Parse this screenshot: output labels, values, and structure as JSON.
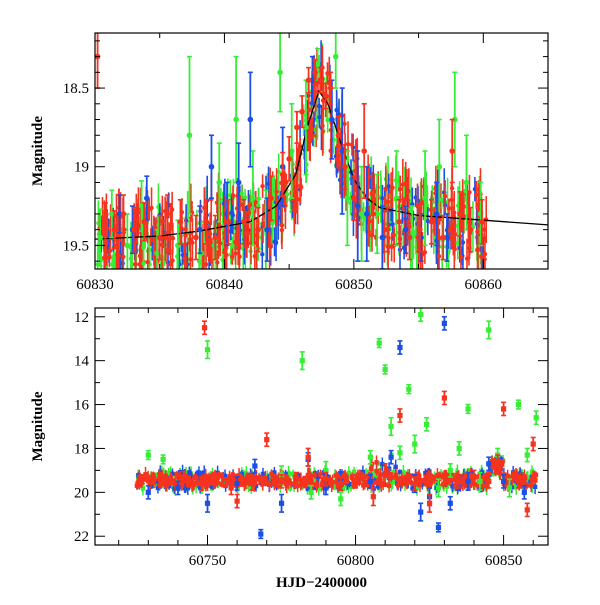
{
  "colors": {
    "green": "#36ee36",
    "blue": "#1b4fe6",
    "red": "#f5331f",
    "model": "#000000"
  },
  "chart_data": [
    {
      "type": "scatter",
      "panel": "zoom",
      "ylabel": "Magnitude",
      "xlabel": "",
      "xlim": [
        60830,
        60865
      ],
      "ylim": [
        19.65,
        18.15
      ],
      "y_inverted": true,
      "xticks": [
        60830,
        60840,
        60850,
        60860
      ],
      "yticks": [
        18.5,
        19,
        19.5
      ],
      "yticklabels": [
        "18.5",
        "19",
        "19.5"
      ],
      "model_curve": [
        [
          60830,
          19.46
        ],
        [
          60835,
          19.44
        ],
        [
          60838,
          19.41
        ],
        [
          60842,
          19.35
        ],
        [
          60844,
          19.25
        ],
        [
          60845.5,
          19.05
        ],
        [
          60846.5,
          18.72
        ],
        [
          60847.3,
          18.52
        ],
        [
          60848,
          18.6
        ],
        [
          60849,
          18.85
        ],
        [
          60850,
          19.08
        ],
        [
          60851,
          19.2
        ],
        [
          60852,
          19.26
        ],
        [
          60855,
          19.31
        ],
        [
          60860,
          19.34
        ],
        [
          60865,
          19.37
        ]
      ],
      "series": [
        {
          "color": "green",
          "points": [
            [
              60830.4,
              19.45,
              0.18
            ],
            [
              60831.3,
              19.3,
              0.15
            ],
            [
              60832.5,
              19.5,
              0.2
            ],
            [
              60833.6,
              19.25,
              0.16
            ],
            [
              60834.8,
              19.55,
              0.15
            ],
            [
              60836.4,
              19.5,
              0.16
            ],
            [
              60837.3,
              18.8,
              0.5
            ],
            [
              60838.2,
              19.55,
              0.2
            ],
            [
              60839.6,
              19.1,
              0.25
            ],
            [
              60840.9,
              18.7,
              0.4
            ],
            [
              60842.2,
              19.2,
              0.3
            ],
            [
              60843.2,
              19.4,
              0.25
            ],
            [
              60844.3,
              18.4,
              0.25
            ],
            [
              60845.2,
              18.9,
              0.3
            ],
            [
              60846.3,
              18.75,
              0.3
            ],
            [
              60847.2,
              18.35,
              0.1
            ],
            [
              60848.6,
              18.3,
              0.2
            ],
            [
              60849.5,
              19.2,
              0.3
            ],
            [
              60850.6,
              19.3,
              0.3
            ],
            [
              60851.8,
              19.3,
              0.25
            ],
            [
              60853.3,
              19.2,
              0.3
            ],
            [
              60854.5,
              19.45,
              0.2
            ],
            [
              60855.5,
              19.2,
              0.3
            ],
            [
              60856.6,
              19.0,
              0.3
            ],
            [
              60857.8,
              18.7,
              0.3
            ],
            [
              60858.7,
              19.1,
              0.3
            ],
            [
              60859.8,
              19.3,
              0.2
            ]
          ]
        },
        {
          "color": "blue",
          "points": [
            [
              60831.9,
              19.3,
              0.12
            ],
            [
              60832.9,
              19.4,
              0.15
            ],
            [
              60834.0,
              19.2,
              0.14
            ],
            [
              60838.1,
              19.4,
              0.15
            ],
            [
              60839.0,
              19.0,
              0.2
            ],
            [
              60840.2,
              19.3,
              0.2
            ],
            [
              60841.1,
              19.1,
              0.25
            ],
            [
              60842.0,
              18.7,
              0.3
            ],
            [
              60843.3,
              19.4,
              0.2
            ],
            [
              60844.5,
              19.0,
              0.25
            ],
            [
              60846.8,
              18.45,
              0.15
            ],
            [
              60848.3,
              18.7,
              0.25
            ],
            [
              60849.1,
              18.9,
              0.4
            ],
            [
              60850.3,
              19.25,
              0.35
            ],
            [
              60851.0,
              19.3,
              0.3
            ],
            [
              60852.2,
              19.45,
              0.2
            ],
            [
              60854.0,
              19.4,
              0.15
            ],
            [
              60855.2,
              19.45,
              0.15
            ],
            [
              60856.4,
              19.3,
              0.2
            ],
            [
              60857.2,
              19.45,
              0.15
            ]
          ]
        },
        {
          "color": "red",
          "points": [
            [
              60830.2,
              18.3,
              0.2
            ],
            [
              60830.8,
              19.35,
              0.12
            ],
            [
              60831.5,
              19.4,
              0.12
            ],
            [
              60832.2,
              19.3,
              0.12
            ],
            [
              60833.0,
              19.4,
              0.14
            ],
            [
              60833.8,
              19.35,
              0.12
            ],
            [
              60835.0,
              19.45,
              0.14
            ],
            [
              60835.6,
              19.3,
              0.12
            ],
            [
              60836.6,
              19.35,
              0.14
            ],
            [
              60837.8,
              19.45,
              0.14
            ],
            [
              60838.6,
              19.35,
              0.14
            ],
            [
              60839.3,
              19.45,
              0.14
            ],
            [
              60840.3,
              19.35,
              0.14
            ],
            [
              60841.5,
              19.35,
              0.14
            ],
            [
              60842.6,
              19.4,
              0.14
            ],
            [
              60843.6,
              19.2,
              0.14
            ],
            [
              60844.5,
              19.05,
              0.14
            ],
            [
              60845.0,
              18.95,
              0.14
            ],
            [
              60845.6,
              18.75,
              0.1
            ],
            [
              60846.0,
              18.65,
              0.1
            ],
            [
              60846.5,
              18.45,
              0.08
            ],
            [
              60847.0,
              18.4,
              0.08
            ],
            [
              60847.4,
              18.45,
              0.08
            ],
            [
              60847.8,
              18.55,
              0.08
            ],
            [
              60848.2,
              18.5,
              0.1
            ],
            [
              60848.8,
              18.8,
              0.12
            ],
            [
              60849.3,
              19.0,
              0.14
            ],
            [
              60850.0,
              19.2,
              0.14
            ],
            [
              60850.8,
              18.9,
              0.3
            ],
            [
              60851.5,
              19.3,
              0.14
            ],
            [
              60852.6,
              19.4,
              0.14
            ],
            [
              60853.5,
              19.35,
              0.14
            ],
            [
              60854.3,
              19.45,
              0.14
            ],
            [
              60855.1,
              19.4,
              0.14
            ],
            [
              60856.0,
              19.35,
              0.14
            ],
            [
              60856.9,
              19.45,
              0.14
            ],
            [
              60857.6,
              18.9,
              0.2
            ],
            [
              60858.2,
              19.3,
              0.14
            ],
            [
              60859.0,
              19.4,
              0.14
            ],
            [
              60859.9,
              19.35,
              0.14
            ]
          ]
        }
      ]
    },
    {
      "type": "scatter",
      "panel": "full",
      "ylabel": "Magnitude",
      "xlabel": "HJD−2400000",
      "xlim": [
        60712,
        60865
      ],
      "ylim": [
        22.4,
        11.6
      ],
      "y_inverted": true,
      "xticks": [
        60750,
        60800,
        60850
      ],
      "yticks": [
        12,
        14,
        16,
        18,
        20,
        22
      ],
      "yticklabels": [
        "12",
        "14",
        "16",
        "18",
        "20",
        "22"
      ],
      "series": [
        {
          "color": "green",
          "points": [
            [
              60730,
              18.3,
              0.2
            ],
            [
              60735,
              18.5,
              0.2
            ],
            [
              60750,
              13.5,
              0.4
            ],
            [
              60775,
              19.2,
              0.4
            ],
            [
              60782,
              14.0,
              0.4
            ],
            [
              60785,
              20.0,
              0.3
            ],
            [
              60790,
              19.0,
              0.4
            ],
            [
              60795,
              20.3,
              0.3
            ],
            [
              60805,
              18.4,
              0.3
            ],
            [
              60808,
              13.2,
              0.2
            ],
            [
              60810,
              14.4,
              0.2
            ],
            [
              60812,
              17.0,
              0.4
            ],
            [
              60815,
              18.2,
              0.3
            ],
            [
              60818,
              15.3,
              0.2
            ],
            [
              60820,
              17.8,
              0.4
            ],
            [
              60822,
              11.9,
              0.3
            ],
            [
              60824,
              16.9,
              0.3
            ],
            [
              60828,
              19.8,
              0.4
            ],
            [
              60832,
              19.0,
              0.3
            ],
            [
              60835,
              18.0,
              0.3
            ],
            [
              60838,
              16.2,
              0.2
            ],
            [
              60842,
              19.5,
              0.4
            ],
            [
              60845,
              12.6,
              0.4
            ],
            [
              60848,
              18.3,
              0.3
            ],
            [
              60852,
              19.8,
              0.4
            ],
            [
              60855,
              16.0,
              0.2
            ],
            [
              60858,
              18.3,
              0.3
            ],
            [
              60861,
              16.6,
              0.3
            ]
          ]
        },
        {
          "color": "blue",
          "points": [
            [
              60730,
              20.0,
              0.3
            ],
            [
              60740,
              19.8,
              0.3
            ],
            [
              60750,
              20.5,
              0.4
            ],
            [
              60760,
              19.6,
              0.3
            ],
            [
              60766,
              18.8,
              0.3
            ],
            [
              60768,
              21.9,
              0.2
            ],
            [
              60775,
              20.5,
              0.4
            ],
            [
              60784,
              18.5,
              0.3
            ],
            [
              60790,
              19.8,
              0.3
            ],
            [
              60795,
              19.5,
              0.4
            ],
            [
              60805,
              19.5,
              0.3
            ],
            [
              60812,
              18.4,
              0.3
            ],
            [
              60815,
              13.4,
              0.3
            ],
            [
              60820,
              19.6,
              0.4
            ],
            [
              60822,
              20.9,
              0.4
            ],
            [
              60825,
              20.2,
              0.4
            ],
            [
              60828,
              21.6,
              0.2
            ],
            [
              60830,
              12.3,
              0.3
            ],
            [
              60832,
              20.5,
              0.3
            ],
            [
              60838,
              19.5,
              0.4
            ],
            [
              60845,
              18.7,
              0.3
            ],
            [
              60850,
              19.5,
              0.3
            ],
            [
              60857,
              20.0,
              0.3
            ]
          ]
        },
        {
          "color": "red",
          "points": [
            [
              60728,
              19.4,
              0.2
            ],
            [
              60735,
              19.5,
              0.2
            ],
            [
              60742,
              19.3,
              0.25
            ],
            [
              60748,
              19.6,
              0.3
            ],
            [
              60749,
              12.5,
              0.3
            ],
            [
              60752,
              19.4,
              0.25
            ],
            [
              60758,
              19.8,
              0.3
            ],
            [
              60760,
              20.4,
              0.3
            ],
            [
              60765,
              19.6,
              0.3
            ],
            [
              60770,
              17.6,
              0.3
            ],
            [
              60775,
              19.5,
              0.3
            ],
            [
              60780,
              19.4,
              0.3
            ],
            [
              60784,
              18.4,
              0.4
            ],
            [
              60790,
              19.4,
              0.3
            ],
            [
              60795,
              19.6,
              0.3
            ],
            [
              60800,
              19.5,
              0.3
            ],
            [
              60806,
              20.2,
              0.4
            ],
            [
              60810,
              19.2,
              0.5
            ],
            [
              60815,
              16.5,
              0.3
            ],
            [
              60820,
              19.6,
              0.3
            ],
            [
              60825,
              20.5,
              0.4
            ],
            [
              60830,
              15.7,
              0.3
            ],
            [
              60835,
              19.5,
              0.3
            ],
            [
              60840,
              19.3,
              0.3
            ],
            [
              60845,
              19.5,
              0.3
            ],
            [
              60848,
              18.6,
              0.3
            ],
            [
              60850,
              16.2,
              0.3
            ],
            [
              60855,
              19.5,
              0.3
            ],
            [
              60858,
              20.8,
              0.3
            ],
            [
              60860,
              17.8,
              0.3
            ]
          ]
        }
      ]
    }
  ]
}
